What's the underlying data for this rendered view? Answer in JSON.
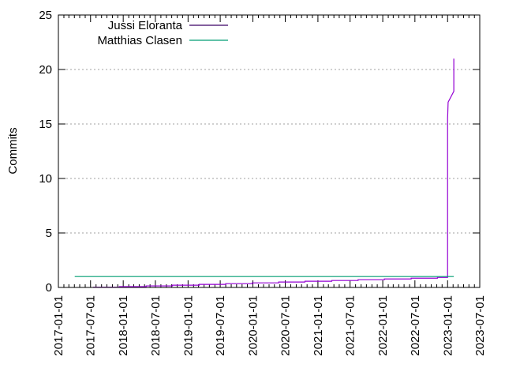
{
  "chart_data": {
    "type": "line",
    "title": "",
    "xlabel": "",
    "ylabel": "Commits",
    "x_type": "date",
    "xlim": [
      "2017-01-01",
      "2023-07-01"
    ],
    "ylim": [
      0,
      25
    ],
    "y_ticks": [
      0,
      5,
      10,
      15,
      20,
      25
    ],
    "x_ticks": [
      "2017-01-01",
      "2017-07-01",
      "2018-01-01",
      "2018-07-01",
      "2019-01-01",
      "2019-07-01",
      "2020-01-01",
      "2020-07-01",
      "2021-01-01",
      "2021-07-01",
      "2022-01-01",
      "2022-07-01",
      "2023-01-01",
      "2023-07-01"
    ],
    "grid": "horizontal dashed",
    "legend_placement": "top-left",
    "series": [
      {
        "name": "Jussi Eloranta",
        "color": "#9400d3",
        "step": true,
        "points": [
          [
            "2017-07-15",
            0.02
          ],
          [
            "2017-12-10",
            0.07
          ],
          [
            "2018-05-10",
            0.14
          ],
          [
            "2018-10-05",
            0.21
          ],
          [
            "2019-03-05",
            0.28
          ],
          [
            "2019-08-01",
            0.35
          ],
          [
            "2019-12-28",
            0.42
          ],
          [
            "2020-05-25",
            0.5
          ],
          [
            "2020-10-20",
            0.57
          ],
          [
            "2021-03-20",
            0.64
          ],
          [
            "2021-08-15",
            0.71
          ],
          [
            "2022-01-10",
            0.78
          ],
          [
            "2022-06-10",
            0.85
          ],
          [
            "2022-11-05",
            0.92
          ],
          [
            "2023-01-01",
            1
          ],
          [
            "2023-01-01",
            15.5
          ],
          [
            "2023-01-04",
            17
          ],
          [
            "2023-02-05",
            18
          ],
          [
            "2023-02-05",
            21
          ]
        ]
      },
      {
        "name": "Matthias Clasen",
        "color": "#009e73",
        "step": true,
        "points": [
          [
            "2017-04-03",
            1
          ],
          [
            "2023-02-05",
            1
          ]
        ]
      }
    ]
  }
}
